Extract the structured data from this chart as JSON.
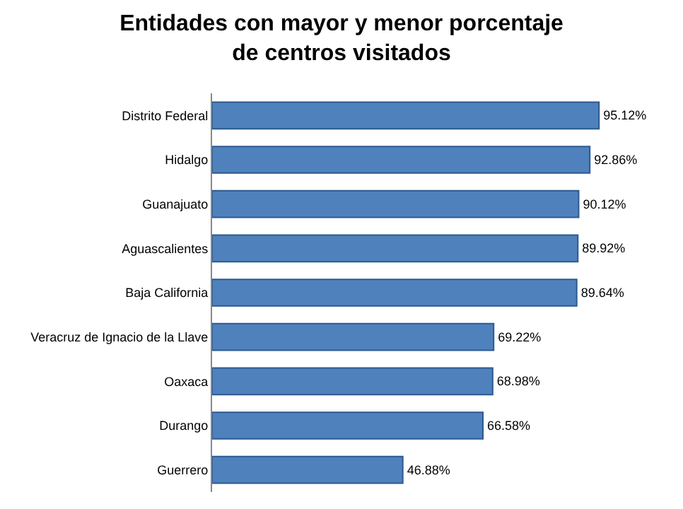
{
  "chart_data": {
    "type": "bar",
    "orientation": "horizontal",
    "title": "Entidades con mayor y menor porcentaje de centros visitados",
    "categories": [
      "Distrito Federal",
      "Hidalgo",
      "Guanajuato",
      "Aguascalientes",
      "Baja California",
      "Veracruz de Ignacio de la Llave",
      "Oaxaca",
      "Durango",
      "Guerrero"
    ],
    "values": [
      95.12,
      92.86,
      90.12,
      89.92,
      89.64,
      69.22,
      68.98,
      66.58,
      46.88
    ],
    "value_labels": [
      "95.12%",
      "92.86%",
      "90.12%",
      "89.92%",
      "89.64%",
      "69.22%",
      "68.98%",
      "66.58%",
      "46.88%"
    ],
    "color": "#4f81bd"
  }
}
